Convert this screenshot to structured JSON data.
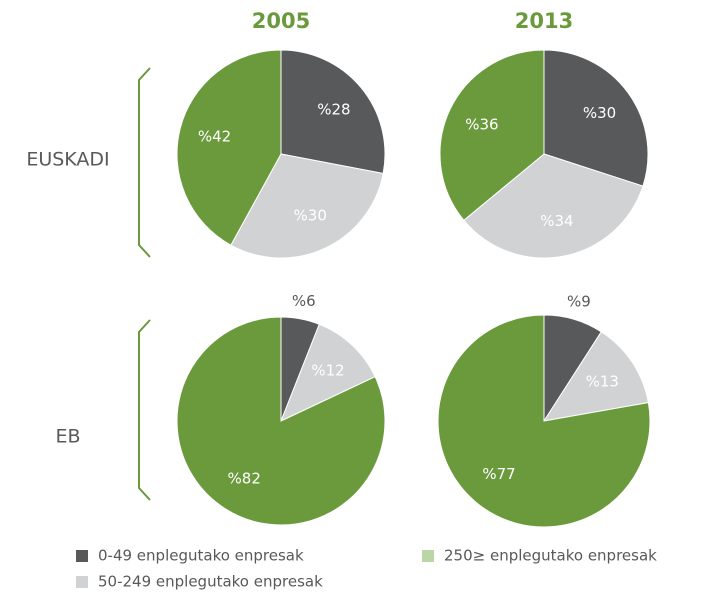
{
  "columns": [
    "2005",
    "2013"
  ],
  "rows": [
    "EUSKADI",
    "EB"
  ],
  "legend": [
    {
      "name": "0-49 enplegutako enpresak",
      "color": "#58595b"
    },
    {
      "name": "50-249 enplegutako enpresak",
      "color": "#d1d2d3"
    },
    {
      "name": "250≥ enplegutako enpresak",
      "color": "#b9d6a4"
    }
  ],
  "chart_data": [
    {
      "type": "pie",
      "values": [
        28,
        30,
        42
      ],
      "value_labels": [
        "%28",
        "%30",
        "%42"
      ],
      "colors": [
        "#58595b",
        "#d1d2d3",
        "#6a9a3c"
      ]
    },
    {
      "type": "pie",
      "values": [
        30,
        34,
        36
      ],
      "value_labels": [
        "%30",
        "%34",
        "%36"
      ],
      "colors": [
        "#58595b",
        "#d1d2d3",
        "#6a9a3c"
      ]
    },
    {
      "type": "pie",
      "values": [
        6,
        12,
        82
      ],
      "value_labels": [
        "%6",
        "%12",
        "%82"
      ],
      "colors": [
        "#58595b",
        "#d1d2d3",
        "#6a9a3c"
      ]
    },
    {
      "type": "pie",
      "values": [
        9,
        13,
        77
      ],
      "value_labels": [
        "%9",
        "%13",
        "%77"
      ],
      "colors": [
        "#58595b",
        "#d1d2d3",
        "#6a9a3c"
      ]
    }
  ]
}
